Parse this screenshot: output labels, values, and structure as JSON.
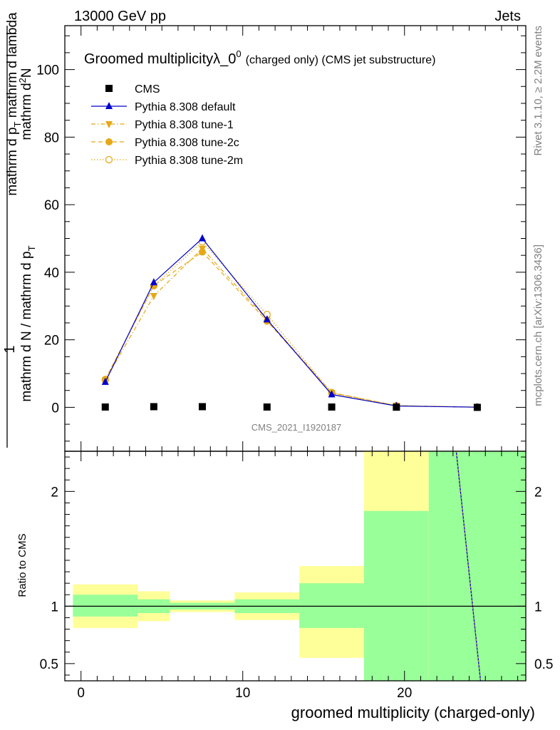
{
  "header": {
    "energy_label": "13000 GeV pp",
    "category_label": "Jets",
    "title_main": "Groomed multiplicityλ_0",
    "title_sup": "0",
    "title_suffix": "(charged only) (CMS jet substructure)",
    "watermark": "CMS_2021_I1920187",
    "side_rivet": "Rivet 3.1.10, ≥ 2.2M events",
    "side_mcplots": "mcplots.cern.ch [arXiv:1306.3436]"
  },
  "chart_data": [
    {
      "type": "line",
      "ylabel": "1 / (mathrm d N / mathrm d p_T) · mathrm d²N / (mathrm d p_T mathrm d lambda)",
      "ylim": [
        -13,
        113
      ],
      "xlim": [
        -1,
        27.5
      ],
      "y_ticks": [
        0,
        20,
        40,
        60,
        80,
        100
      ],
      "legend_placement": "top-left",
      "x": [
        1.5,
        4.5,
        7.5,
        11.5,
        15.5,
        19.5,
        24.5
      ],
      "series": [
        {
          "name": "CMS",
          "color": "#000000",
          "marker": "square",
          "values": [
            0.1,
            0.2,
            0.2,
            0.1,
            0.1,
            0.05,
            0.0
          ]
        },
        {
          "name": "Pythia 8.308 default",
          "color": "#0000cc",
          "marker": "triangle-up",
          "line": "solid",
          "values": [
            7.5,
            37,
            50,
            26,
            3.8,
            0.4,
            0.05
          ]
        },
        {
          "name": "Pythia 8.308 tune-1",
          "color": "#e6a817",
          "marker": "triangle-down",
          "line": "dashdot",
          "values": [
            8.0,
            33,
            47,
            26,
            4.3,
            0.5,
            0.05
          ]
        },
        {
          "name": "Pythia 8.308 tune-2c",
          "color": "#e6a817",
          "marker": "circle-filled",
          "line": "dashed",
          "values": [
            8.3,
            36,
            46,
            25.5,
            4.4,
            0.5,
            0.05
          ]
        },
        {
          "name": "Pythia 8.308 tune-2m",
          "color": "#e6a817",
          "marker": "circle-open",
          "line": "dotted",
          "values": [
            8.1,
            36,
            49,
            27.5,
            4.2,
            0.5,
            0.05
          ]
        }
      ]
    },
    {
      "type": "area",
      "ylabel": "Ratio to CMS",
      "xlabel": "groomed multiplicity (charged-only)",
      "ylim": [
        0.35,
        2.35
      ],
      "xlim": [
        -1,
        27.5
      ],
      "x_ticks": [
        0,
        10,
        20
      ],
      "y_ticks": [
        0.5,
        1,
        2
      ],
      "bands": [
        {
          "x0": -0.5,
          "x1": 3.5,
          "stat": [
            0.91,
            1.1
          ],
          "total": [
            0.81,
            1.19
          ]
        },
        {
          "x0": 3.5,
          "x1": 5.5,
          "stat": [
            0.94,
            1.06
          ],
          "total": [
            0.87,
            1.13
          ]
        },
        {
          "x0": 5.5,
          "x1": 9.5,
          "stat": [
            0.97,
            1.03
          ],
          "total": [
            0.95,
            1.05
          ]
        },
        {
          "x0": 9.5,
          "x1": 13.5,
          "stat": [
            0.94,
            1.06
          ],
          "total": [
            0.88,
            1.12
          ]
        },
        {
          "x0": 13.5,
          "x1": 17.5,
          "stat": [
            0.81,
            1.2
          ],
          "total": [
            0.55,
            1.35
          ]
        },
        {
          "x0": 17.5,
          "x1": 21.5,
          "stat": [
            0.35,
            1.83
          ],
          "total": [
            0.35,
            2.35
          ]
        },
        {
          "x0": 21.5,
          "x1": 27.5,
          "stat": [
            0.35,
            2.35
          ],
          "total": [
            0.35,
            2.35
          ]
        }
      ],
      "ratio_line": {
        "x": [
          23.2,
          24.7
        ],
        "y": [
          2.35,
          0.35
        ]
      }
    }
  ],
  "colors": {
    "stat_band": "#99ff99",
    "total_band": "#ffff99",
    "default": "#0000cc",
    "tunes": "#e6a817"
  }
}
